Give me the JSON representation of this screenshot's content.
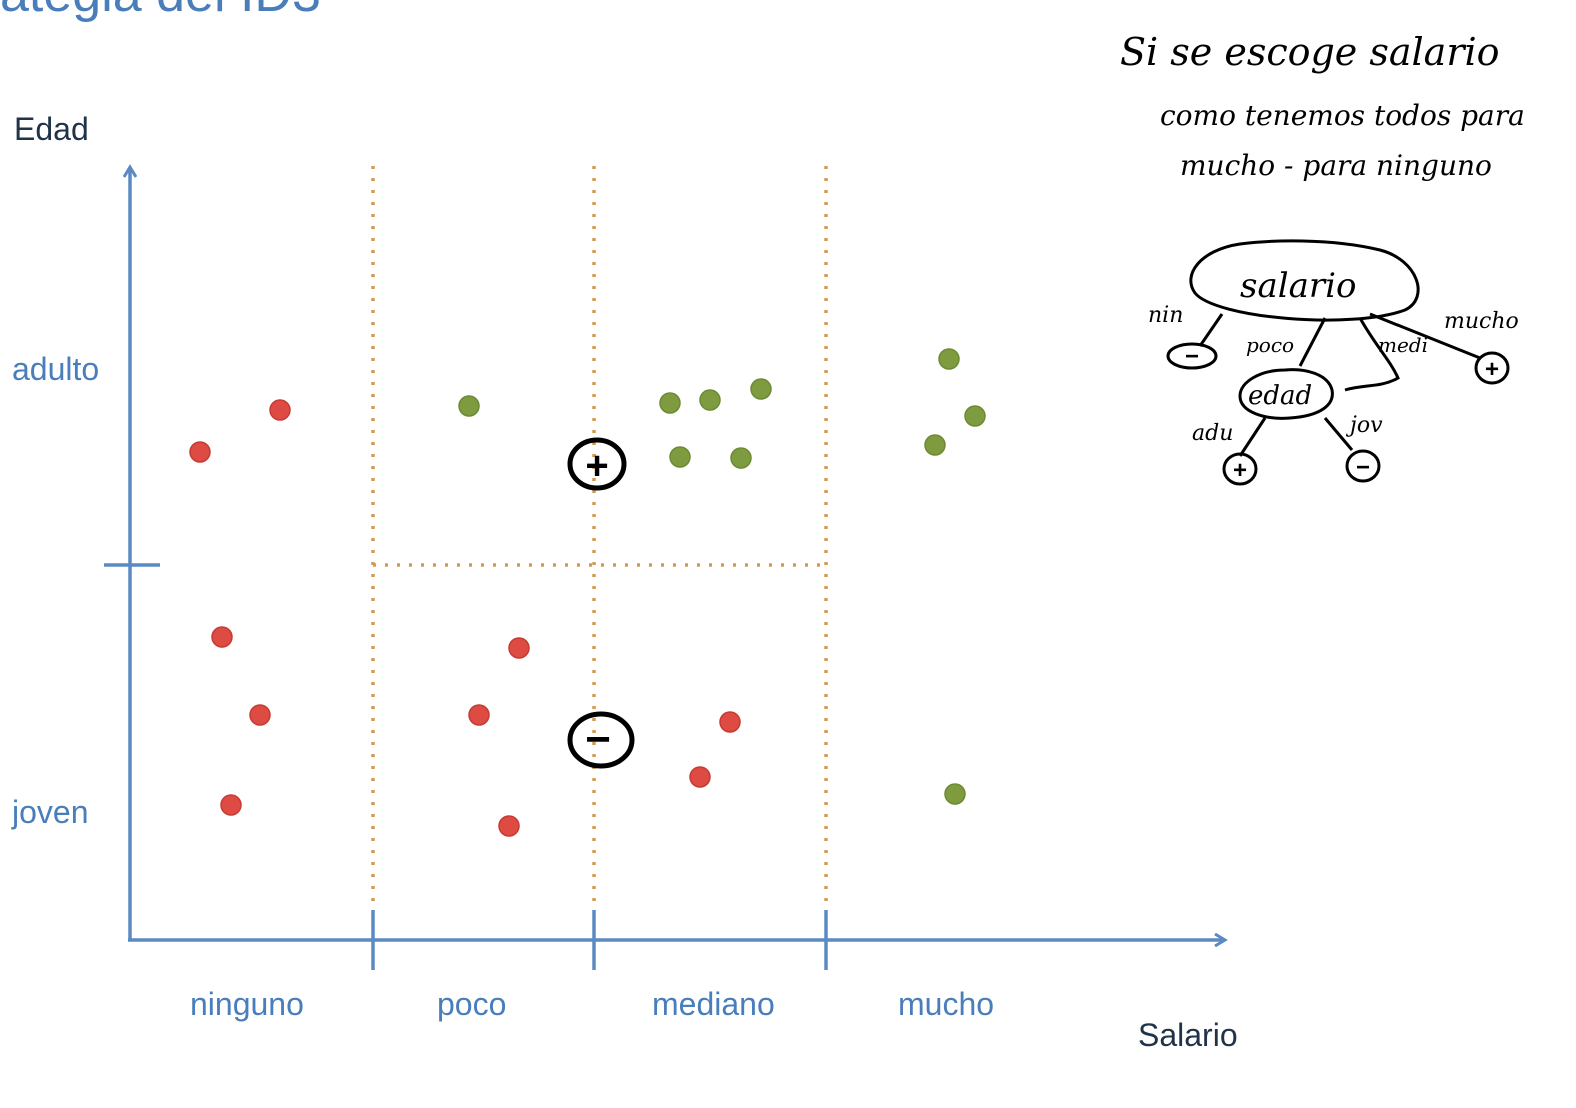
{
  "title": "ategia del ID3",
  "axes": {
    "y_title": "Edad",
    "x_title": "Salario",
    "y_categories": [
      "adulto",
      "joven"
    ],
    "x_categories": [
      "ninguno",
      "poco",
      "mediano",
      "mucho"
    ]
  },
  "colors": {
    "axis": "#5b8ac3",
    "divider": "#d29a54",
    "positive": "#7e9c3f",
    "negative": "#dd4b43",
    "ink": "#000000",
    "label": "#4a7ebb"
  },
  "points": {
    "ninguno": {
      "adulto": {
        "positive": 0,
        "negative": 2
      },
      "joven": {
        "positive": 0,
        "negative": 3
      }
    },
    "poco": {
      "adulto": {
        "positive": 1,
        "negative": 0
      },
      "joven": {
        "positive": 0,
        "negative": 3
      }
    },
    "mediano": {
      "adulto": {
        "positive": 5,
        "negative": 0
      },
      "joven": {
        "positive": 0,
        "negative": 2
      }
    },
    "mucho": {
      "adulto": {
        "positive": 3,
        "negative": 0
      },
      "joven": {
        "positive": 1,
        "negative": 0
      }
    }
  },
  "region_markers": [
    {
      "region": "poco-mediano adulto",
      "symbol": "+"
    },
    {
      "region": "poco-mediano joven",
      "symbol": "−"
    }
  ],
  "note": {
    "line1": "Si se escoge salario",
    "line2": "como tenemos todos para",
    "line3": "mucho - para ninguno"
  },
  "tree": {
    "root": "salario",
    "branches": [
      "nin",
      "poco",
      "medi",
      "mucho"
    ],
    "child": "edad",
    "child_branches": [
      "adu",
      "jov"
    ],
    "leaf_pos": "+",
    "leaf_neg": "−"
  }
}
